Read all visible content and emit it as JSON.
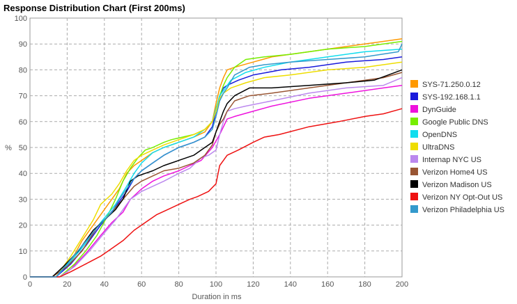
{
  "chart_data": {
    "type": "line",
    "title": "Response Distribution Chart (First 200ms)",
    "xlabel": "Duration in ms",
    "ylabel": "%",
    "xlim": [
      0,
      200
    ],
    "ylim": [
      0,
      100
    ],
    "xticks": [
      0,
      20,
      40,
      60,
      80,
      100,
      120,
      140,
      160,
      180,
      200
    ],
    "yticks": [
      0,
      10,
      20,
      30,
      40,
      50,
      60,
      70,
      80,
      90,
      100
    ],
    "grid": true,
    "legend_position": "right",
    "series": [
      {
        "name": "SYS-71.250.0.12",
        "color": "#ff9900",
        "points": [
          [
            0,
            0
          ],
          [
            14,
            0
          ],
          [
            22,
            6
          ],
          [
            28,
            14
          ],
          [
            36,
            22
          ],
          [
            42,
            28
          ],
          [
            48,
            34
          ],
          [
            52,
            40
          ],
          [
            56,
            43
          ],
          [
            60,
            45
          ],
          [
            66,
            48
          ],
          [
            72,
            50
          ],
          [
            80,
            52
          ],
          [
            88,
            54
          ],
          [
            94,
            56
          ],
          [
            98,
            60
          ],
          [
            100,
            67
          ],
          [
            102,
            73
          ],
          [
            104,
            77
          ],
          [
            106,
            80
          ],
          [
            110,
            81
          ],
          [
            120,
            83
          ],
          [
            130,
            85
          ],
          [
            150,
            87
          ],
          [
            170,
            89
          ],
          [
            190,
            91
          ],
          [
            200,
            92
          ]
        ]
      },
      {
        "name": "SYS-192.168.1.1",
        "color": "#1a1adb",
        "points": [
          [
            0,
            0
          ],
          [
            14,
            0
          ],
          [
            22,
            5
          ],
          [
            30,
            12
          ],
          [
            38,
            20
          ],
          [
            46,
            27
          ],
          [
            52,
            33
          ],
          [
            56,
            38
          ],
          [
            60,
            41
          ],
          [
            66,
            44
          ],
          [
            72,
            47
          ],
          [
            80,
            50
          ],
          [
            88,
            52
          ],
          [
            94,
            54
          ],
          [
            98,
            58
          ],
          [
            100,
            64
          ],
          [
            102,
            70
          ],
          [
            104,
            73
          ],
          [
            106,
            74
          ],
          [
            112,
            76
          ],
          [
            120,
            78
          ],
          [
            135,
            80
          ],
          [
            150,
            81
          ],
          [
            170,
            83
          ],
          [
            190,
            84
          ],
          [
            200,
            85
          ]
        ]
      },
      {
        "name": "DynGuide",
        "color": "#ee11dd",
        "points": [
          [
            0,
            0
          ],
          [
            16,
            0
          ],
          [
            22,
            3
          ],
          [
            30,
            9
          ],
          [
            38,
            16
          ],
          [
            44,
            21
          ],
          [
            50,
            25
          ],
          [
            54,
            30
          ],
          [
            60,
            34
          ],
          [
            66,
            37
          ],
          [
            72,
            39
          ],
          [
            80,
            41
          ],
          [
            86,
            43
          ],
          [
            92,
            45
          ],
          [
            98,
            50
          ],
          [
            102,
            55
          ],
          [
            104,
            58
          ],
          [
            106,
            61
          ],
          [
            110,
            62
          ],
          [
            120,
            64
          ],
          [
            130,
            66
          ],
          [
            150,
            69
          ],
          [
            170,
            71
          ],
          [
            190,
            73
          ],
          [
            200,
            74
          ]
        ]
      },
      {
        "name": "Google Public DNS",
        "color": "#77ee00",
        "points": [
          [
            0,
            0
          ],
          [
            16,
            0
          ],
          [
            24,
            5
          ],
          [
            30,
            10
          ],
          [
            36,
            16
          ],
          [
            42,
            24
          ],
          [
            46,
            30
          ],
          [
            50,
            37
          ],
          [
            54,
            42
          ],
          [
            58,
            46
          ],
          [
            62,
            49
          ],
          [
            66,
            50
          ],
          [
            72,
            52
          ],
          [
            76,
            53
          ],
          [
            82,
            54
          ],
          [
            88,
            55
          ],
          [
            94,
            57
          ],
          [
            98,
            60
          ],
          [
            100,
            65
          ],
          [
            102,
            70
          ],
          [
            104,
            74
          ],
          [
            106,
            77
          ],
          [
            110,
            81
          ],
          [
            116,
            84
          ],
          [
            126,
            85
          ],
          [
            140,
            86
          ],
          [
            160,
            88
          ],
          [
            180,
            89
          ],
          [
            200,
            91
          ]
        ]
      },
      {
        "name": "OpenDNS",
        "color": "#11ddee",
        "points": [
          [
            0,
            0
          ],
          [
            14,
            0
          ],
          [
            22,
            6
          ],
          [
            30,
            13
          ],
          [
            38,
            21
          ],
          [
            46,
            28
          ],
          [
            52,
            35
          ],
          [
            56,
            40
          ],
          [
            60,
            44
          ],
          [
            66,
            48
          ],
          [
            72,
            50
          ],
          [
            80,
            52
          ],
          [
            88,
            54
          ],
          [
            94,
            57
          ],
          [
            98,
            60
          ],
          [
            100,
            65
          ],
          [
            102,
            70
          ],
          [
            104,
            72
          ],
          [
            108,
            76
          ],
          [
            116,
            79
          ],
          [
            126,
            81
          ],
          [
            140,
            83
          ],
          [
            160,
            85
          ],
          [
            180,
            87
          ],
          [
            200,
            88
          ]
        ]
      },
      {
        "name": "UltraDNS",
        "color": "#eedd00",
        "points": [
          [
            0,
            0
          ],
          [
            14,
            0
          ],
          [
            22,
            8
          ],
          [
            28,
            15
          ],
          [
            34,
            22
          ],
          [
            38,
            28
          ],
          [
            44,
            32
          ],
          [
            48,
            36
          ],
          [
            52,
            41
          ],
          [
            56,
            45
          ],
          [
            60,
            47
          ],
          [
            66,
            49
          ],
          [
            72,
            51
          ],
          [
            80,
            53
          ],
          [
            88,
            55
          ],
          [
            94,
            57
          ],
          [
            98,
            60
          ],
          [
            100,
            64
          ],
          [
            102,
            69
          ],
          [
            104,
            71
          ],
          [
            108,
            73
          ],
          [
            116,
            75
          ],
          [
            126,
            77
          ],
          [
            140,
            78
          ],
          [
            160,
            80
          ],
          [
            180,
            81
          ],
          [
            200,
            83
          ]
        ]
      },
      {
        "name": "Internap NYC US",
        "color": "#bb88ee",
        "points": [
          [
            0,
            0
          ],
          [
            16,
            0
          ],
          [
            24,
            4
          ],
          [
            32,
            10
          ],
          [
            40,
            17
          ],
          [
            46,
            22
          ],
          [
            50,
            26
          ],
          [
            54,
            30
          ],
          [
            60,
            33
          ],
          [
            66,
            35
          ],
          [
            72,
            37
          ],
          [
            80,
            40
          ],
          [
            86,
            42
          ],
          [
            92,
            46
          ],
          [
            96,
            47
          ],
          [
            100,
            49
          ],
          [
            102,
            55
          ],
          [
            104,
            60
          ],
          [
            106,
            64
          ],
          [
            110,
            65
          ],
          [
            116,
            66
          ],
          [
            130,
            68
          ],
          [
            150,
            71
          ],
          [
            170,
            73
          ],
          [
            190,
            74
          ],
          [
            200,
            77
          ]
        ]
      },
      {
        "name": "Verizon Home4 US",
        "color": "#995533",
        "points": [
          [
            0,
            0
          ],
          [
            12,
            0
          ],
          [
            20,
            4
          ],
          [
            28,
            10
          ],
          [
            36,
            19
          ],
          [
            44,
            25
          ],
          [
            50,
            30
          ],
          [
            56,
            35
          ],
          [
            60,
            37
          ],
          [
            66,
            39
          ],
          [
            72,
            41
          ],
          [
            80,
            42
          ],
          [
            88,
            44
          ],
          [
            94,
            47
          ],
          [
            98,
            51
          ],
          [
            100,
            56
          ],
          [
            102,
            59
          ],
          [
            104,
            61
          ],
          [
            106,
            64
          ],
          [
            110,
            68
          ],
          [
            118,
            70
          ],
          [
            130,
            71
          ],
          [
            150,
            73
          ],
          [
            170,
            75
          ],
          [
            190,
            77
          ],
          [
            200,
            79
          ]
        ]
      },
      {
        "name": "Verizon Madison US",
        "color": "#000000",
        "points": [
          [
            0,
            0
          ],
          [
            12,
            0
          ],
          [
            18,
            4
          ],
          [
            26,
            10
          ],
          [
            34,
            18
          ],
          [
            40,
            22
          ],
          [
            46,
            26
          ],
          [
            50,
            30
          ],
          [
            54,
            37
          ],
          [
            58,
            39
          ],
          [
            62,
            40
          ],
          [
            66,
            41
          ],
          [
            72,
            43
          ],
          [
            80,
            45
          ],
          [
            88,
            47
          ],
          [
            94,
            50
          ],
          [
            98,
            52
          ],
          [
            100,
            56
          ],
          [
            102,
            60
          ],
          [
            104,
            64
          ],
          [
            106,
            67
          ],
          [
            110,
            70
          ],
          [
            118,
            73
          ],
          [
            130,
            73
          ],
          [
            150,
            74
          ],
          [
            170,
            75
          ],
          [
            185,
            76
          ],
          [
            200,
            80
          ]
        ]
      },
      {
        "name": "Verizon NY Opt-Out US",
        "color": "#ee1111",
        "points": [
          [
            0,
            0
          ],
          [
            16,
            0
          ],
          [
            22,
            2
          ],
          [
            30,
            5
          ],
          [
            38,
            8
          ],
          [
            44,
            11
          ],
          [
            50,
            14
          ],
          [
            56,
            18
          ],
          [
            62,
            21
          ],
          [
            68,
            24
          ],
          [
            74,
            26
          ],
          [
            80,
            28
          ],
          [
            86,
            30
          ],
          [
            90,
            31
          ],
          [
            96,
            33
          ],
          [
            100,
            36
          ],
          [
            102,
            43
          ],
          [
            104,
            45
          ],
          [
            106,
            47
          ],
          [
            112,
            49
          ],
          [
            120,
            52
          ],
          [
            126,
            54
          ],
          [
            134,
            55
          ],
          [
            150,
            58
          ],
          [
            166,
            60
          ],
          [
            180,
            62
          ],
          [
            190,
            63
          ],
          [
            200,
            65
          ]
        ]
      },
      {
        "name": "Verizon Philadelphia US",
        "color": "#3399cc",
        "points": [
          [
            0,
            0
          ],
          [
            14,
            0
          ],
          [
            20,
            5
          ],
          [
            28,
            12
          ],
          [
            36,
            19
          ],
          [
            44,
            25
          ],
          [
            48,
            30
          ],
          [
            52,
            34
          ],
          [
            56,
            38
          ],
          [
            60,
            41
          ],
          [
            66,
            44
          ],
          [
            72,
            47
          ],
          [
            80,
            50
          ],
          [
            88,
            52
          ],
          [
            94,
            54
          ],
          [
            98,
            57
          ],
          [
            100,
            62
          ],
          [
            102,
            68
          ],
          [
            104,
            71
          ],
          [
            106,
            73
          ],
          [
            110,
            78
          ],
          [
            118,
            81
          ],
          [
            126,
            82
          ],
          [
            140,
            83
          ],
          [
            160,
            84
          ],
          [
            180,
            85
          ],
          [
            198,
            87
          ],
          [
            200,
            90
          ]
        ]
      }
    ]
  }
}
